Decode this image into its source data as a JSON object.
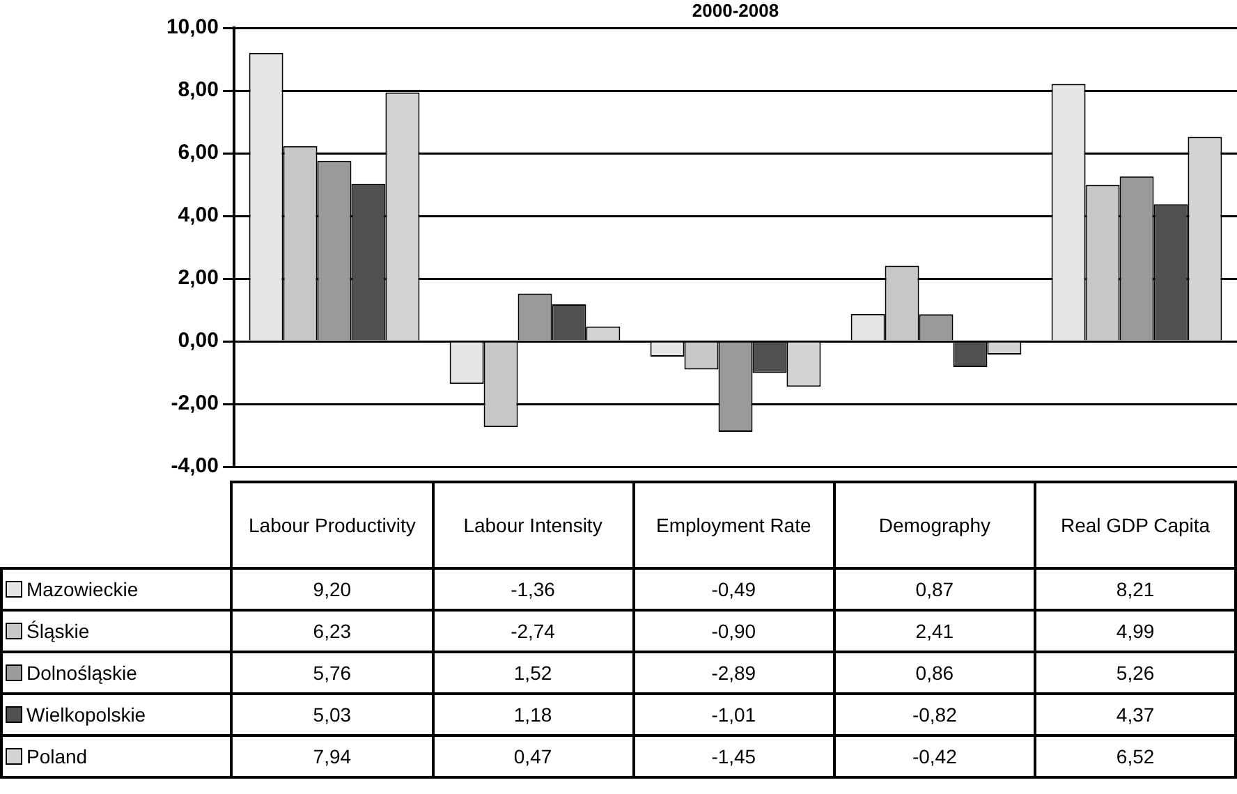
{
  "chart_data": {
    "type": "bar",
    "title": "2000-2008",
    "categories": [
      "Labour Productivity",
      "Labour Intensity",
      "Employment Rate",
      "Demography",
      "Real GDP Capita"
    ],
    "series": [
      {
        "name": "Mazowieckie",
        "color": "#e6e6e6",
        "values": [
          9.2,
          -1.36,
          -0.49,
          0.87,
          8.21
        ],
        "value_labels": [
          "9,20",
          "-1,36",
          "-0,49",
          "0,87",
          "8,21"
        ]
      },
      {
        "name": "Śląskie",
        "color": "#c8c8c8",
        "values": [
          6.23,
          -2.74,
          -0.9,
          2.41,
          4.99
        ],
        "value_labels": [
          "6,23",
          "-2,74",
          "-0,90",
          "2,41",
          "4,99"
        ]
      },
      {
        "name": "Dolnośląskie",
        "color": "#9a9a9a",
        "values": [
          5.76,
          1.52,
          -2.89,
          0.86,
          5.26
        ],
        "value_labels": [
          "5,76",
          "1,52",
          "-2,89",
          "0,86",
          "5,26"
        ]
      },
      {
        "name": "Wielkopolskie",
        "color": "#505050",
        "values": [
          5.03,
          1.18,
          -1.01,
          -0.82,
          4.37
        ],
        "value_labels": [
          "5,03",
          "1,18",
          "-1,01",
          "-0,82",
          "4,37"
        ]
      },
      {
        "name": "Poland",
        "color": "#d4d4d4",
        "values": [
          7.94,
          0.47,
          -1.45,
          -0.42,
          6.52
        ],
        "value_labels": [
          "7,94",
          "0,47",
          "-1,45",
          "-0,42",
          "6,52"
        ]
      }
    ],
    "ylim": [
      -4,
      10
    ],
    "yticks": [
      {
        "value": -4,
        "label": "-4,00"
      },
      {
        "value": -2,
        "label": "-2,00"
      },
      {
        "value": 0,
        "label": "0,00"
      },
      {
        "value": 2,
        "label": "2,00"
      },
      {
        "value": 4,
        "label": "4,00"
      },
      {
        "value": 6,
        "label": "6,00"
      },
      {
        "value": 8,
        "label": "8,00"
      },
      {
        "value": 10,
        "label": "10,00"
      }
    ],
    "grid": "y",
    "legend": "bottom"
  }
}
